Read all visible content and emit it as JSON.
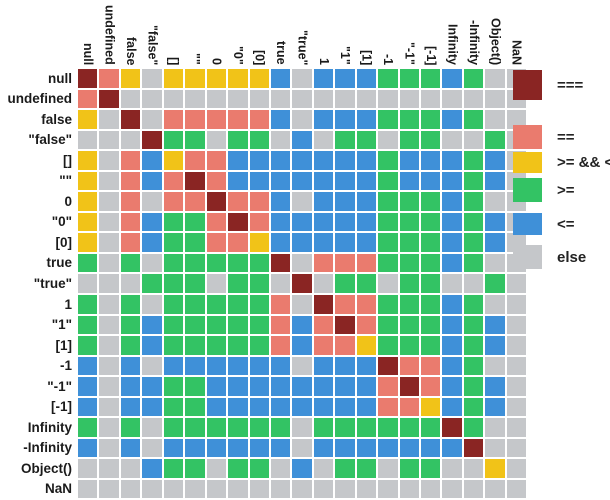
{
  "chart_data": {
    "type": "heatmap",
    "x_categories": [
      "null",
      "undefined",
      "false",
      "\"false\"",
      "[]",
      "\"\"",
      "0",
      "\"0\"",
      "[0]",
      "true",
      "\"true\"",
      "1",
      "\"1\"",
      "[1]",
      "-1",
      "\"-1\"",
      "[-1]",
      "Infinity",
      "-Infinity",
      "Object()",
      "NaN"
    ],
    "y_categories": [
      "null",
      "undefined",
      "false",
      "\"false\"",
      "[]",
      "\"\"",
      "0",
      "\"0\"",
      "[0]",
      "true",
      "\"true\"",
      "1",
      "\"1\"",
      "[1]",
      "-1",
      "\"-1\"",
      "[-1]",
      "Infinity",
      "-Infinity",
      "Object()",
      "NaN"
    ],
    "values": [
      "RSYXYYYYYBXBBBGGGBGXX",
      "SRXXXXXXXXXXXXXXXXXXX",
      "YXRXSSSSSBXBBBGGGBGXX",
      "XXXRGGXGGXBXGGXGGXXGX",
      "YXSBYSSBBBBBBBGBBBGBX",
      "YXSBSRSBBBBBBBGBBBGBX",
      "YXSXSSRSSBXBBBGGGBGXX",
      "YXSBGGSRSBBBBBGGGBGBX",
      "YXSBGGSSYBBBBBGGGBGBX",
      "GXGXGGGGGRXSSSGGGBGXX",
      "XXXGGGXGGXRXGGXGGXXGX",
      "GXGXGGGGGSXRSSGGGBGXX",
      "GXGBGGGGGSBSRSGGGBGBX",
      "GXGBGGGGGSBSSYGGGBGBX",
      "BXBXBBBBBBXBBBRSSBGXX",
      "BXBBGGBBBBBBBBSRSBGBX",
      "BXBBGGBBBBBBBBSSYBGBX",
      "GXGXGGGGGGXGGGGGGRGXX",
      "BXBXBBBBBBXBBBBBBBRXX",
      "XXXBGGXGGXBXGGXGGXXYX",
      "XXXXXXXXXXXXXXXXXXXXX"
    ],
    "legend": [
      {
        "code": "R",
        "label": "==="
      },
      {
        "code": "S",
        "label": "=="
      },
      {
        "code": "Y",
        "label": ">= && <="
      },
      {
        "code": "G",
        "label": ">="
      },
      {
        "code": "B",
        "label": "<="
      },
      {
        "code": "X",
        "label": "else"
      }
    ],
    "colors": {
      "R": "#8a2523",
      "S": "#ea7b6e",
      "Y": "#f1c318",
      "G": "#33c364",
      "B": "#3f90d8",
      "X": "#c5c7ca"
    },
    "legend_position": "right",
    "grid_gap_color": "#ffffff"
  }
}
